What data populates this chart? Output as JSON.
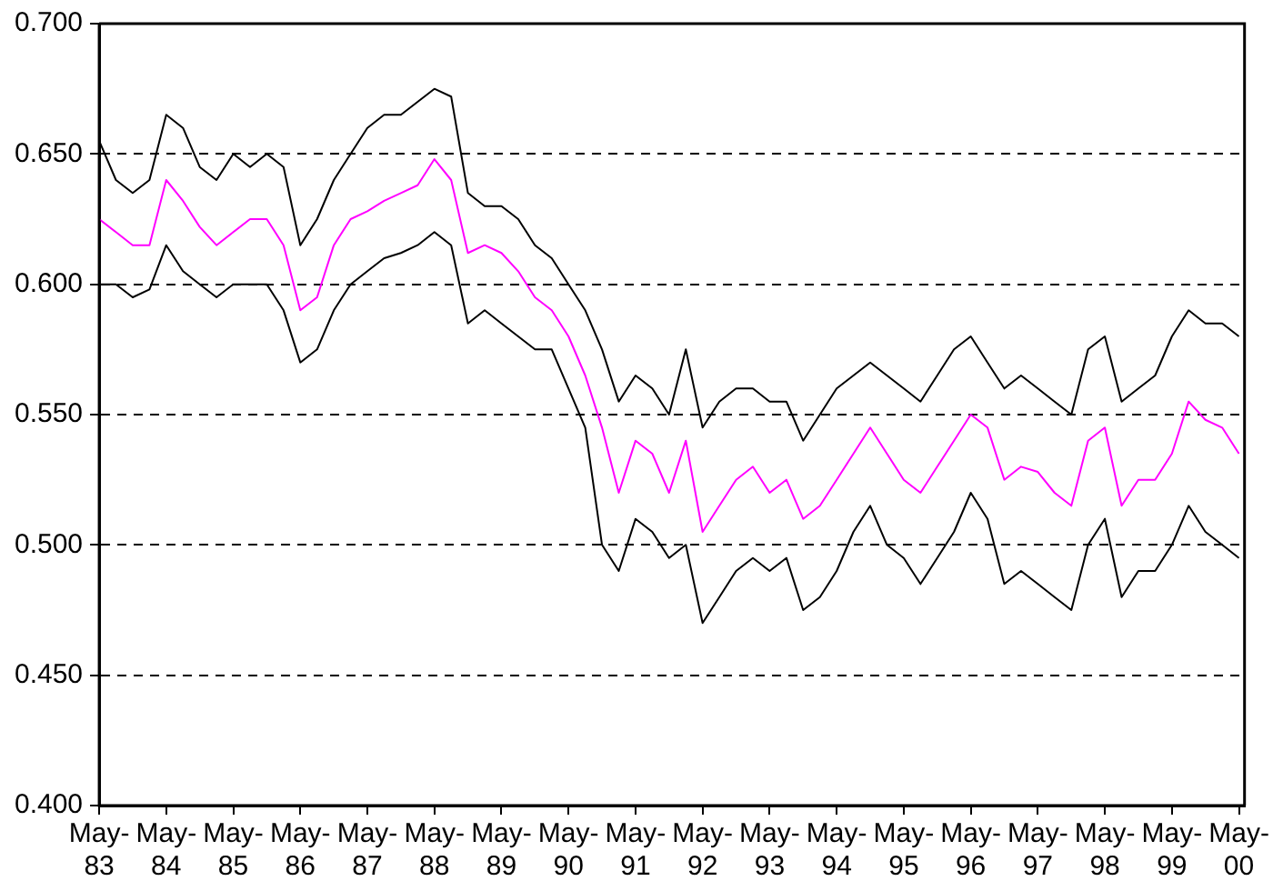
{
  "chart_data": {
    "type": "line",
    "x": [
      "1983-05",
      "1983-08",
      "1983-11",
      "1984-02",
      "1984-05",
      "1984-08",
      "1984-11",
      "1985-02",
      "1985-05",
      "1985-08",
      "1985-11",
      "1986-02",
      "1986-05",
      "1986-08",
      "1986-11",
      "1987-02",
      "1987-05",
      "1987-08",
      "1987-11",
      "1988-02",
      "1988-05",
      "1988-08",
      "1988-11",
      "1989-02",
      "1989-05",
      "1989-08",
      "1989-11",
      "1990-02",
      "1990-05",
      "1990-08",
      "1990-11",
      "1991-02",
      "1991-05",
      "1991-08",
      "1991-11",
      "1992-02",
      "1992-05",
      "1992-08",
      "1992-11",
      "1993-02",
      "1993-05",
      "1993-08",
      "1993-11",
      "1994-02",
      "1994-05",
      "1994-08",
      "1994-11",
      "1995-02",
      "1995-05",
      "1995-08",
      "1995-11",
      "1996-02",
      "1996-05",
      "1996-08",
      "1996-11",
      "1997-02",
      "1997-05",
      "1997-08",
      "1997-11",
      "1998-02",
      "1998-05",
      "1998-08",
      "1998-11",
      "1999-02",
      "1999-05",
      "1999-08",
      "1999-11",
      "2000-02",
      "2000-05"
    ],
    "series": [
      {
        "color": "#000000",
        "values": [
          0.655,
          0.64,
          0.635,
          0.64,
          0.665,
          0.66,
          0.645,
          0.64,
          0.65,
          0.645,
          0.65,
          0.645,
          0.615,
          0.625,
          0.64,
          0.65,
          0.66,
          0.665,
          0.665,
          0.67,
          0.675,
          0.672,
          0.635,
          0.63,
          0.63,
          0.625,
          0.615,
          0.61,
          0.6,
          0.59,
          0.575,
          0.555,
          0.565,
          0.56,
          0.55,
          0.575,
          0.545,
          0.555,
          0.56,
          0.56,
          0.555,
          0.555,
          0.54,
          0.55,
          0.56,
          0.565,
          0.57,
          0.565,
          0.56,
          0.555,
          0.565,
          0.575,
          0.58,
          0.57,
          0.56,
          0.565,
          0.56,
          0.555,
          0.55,
          0.575,
          0.58,
          0.555,
          0.56,
          0.565,
          0.58,
          0.59,
          0.585,
          0.585,
          0.58
        ]
      },
      {
        "color": "#ff00ff",
        "values": [
          0.625,
          0.62,
          0.615,
          0.615,
          0.64,
          0.632,
          0.622,
          0.615,
          0.62,
          0.625,
          0.625,
          0.615,
          0.59,
          0.595,
          0.615,
          0.625,
          0.628,
          0.632,
          0.635,
          0.638,
          0.648,
          0.64,
          0.612,
          0.615,
          0.612,
          0.605,
          0.595,
          0.59,
          0.58,
          0.565,
          0.545,
          0.52,
          0.54,
          0.535,
          0.52,
          0.54,
          0.505,
          0.515,
          0.525,
          0.53,
          0.52,
          0.525,
          0.51,
          0.515,
          0.525,
          0.535,
          0.545,
          0.535,
          0.525,
          0.52,
          0.53,
          0.54,
          0.55,
          0.545,
          0.525,
          0.53,
          0.528,
          0.52,
          0.515,
          0.54,
          0.545,
          0.515,
          0.525,
          0.525,
          0.535,
          0.555,
          0.548,
          0.545,
          0.535
        ]
      },
      {
        "color": "#000000",
        "values": [
          0.6,
          0.6,
          0.595,
          0.598,
          0.615,
          0.605,
          0.6,
          0.595,
          0.6,
          0.6,
          0.6,
          0.59,
          0.57,
          0.575,
          0.59,
          0.6,
          0.605,
          0.61,
          0.612,
          0.615,
          0.62,
          0.615,
          0.585,
          0.59,
          0.585,
          0.58,
          0.575,
          0.575,
          0.56,
          0.545,
          0.5,
          0.49,
          0.51,
          0.505,
          0.495,
          0.5,
          0.47,
          0.48,
          0.49,
          0.495,
          0.49,
          0.495,
          0.475,
          0.48,
          0.49,
          0.505,
          0.515,
          0.5,
          0.495,
          0.485,
          0.495,
          0.505,
          0.52,
          0.51,
          0.485,
          0.49,
          0.485,
          0.48,
          0.475,
          0.5,
          0.51,
          0.48,
          0.49,
          0.49,
          0.5,
          0.515,
          0.505,
          0.5,
          0.495
        ]
      }
    ],
    "xlim": [
      "1983-05",
      "2000-06"
    ],
    "xticks": [
      {
        "value": "1983-05",
        "label": "May-83"
      },
      {
        "value": "1984-05",
        "label": "May-84"
      },
      {
        "value": "1985-05",
        "label": "May-85"
      },
      {
        "value": "1986-05",
        "label": "May-86"
      },
      {
        "value": "1987-05",
        "label": "May-87"
      },
      {
        "value": "1988-05",
        "label": "May-88"
      },
      {
        "value": "1989-05",
        "label": "May-89"
      },
      {
        "value": "1990-05",
        "label": "May-90"
      },
      {
        "value": "1991-05",
        "label": "May-91"
      },
      {
        "value": "1992-05",
        "label": "May-92"
      },
      {
        "value": "1993-05",
        "label": "May-93"
      },
      {
        "value": "1994-05",
        "label": "May-94"
      },
      {
        "value": "1995-05",
        "label": "May-95"
      },
      {
        "value": "1996-05",
        "label": "May-96"
      },
      {
        "value": "1997-05",
        "label": "May-97"
      },
      {
        "value": "1998-05",
        "label": "May-98"
      },
      {
        "value": "1999-05",
        "label": "May-99"
      },
      {
        "value": "2000-05",
        "label": "May-00"
      }
    ],
    "ylim": [
      0.4,
      0.7
    ],
    "yticks": [
      {
        "value": 0.4,
        "label": "0.400"
      },
      {
        "value": 0.45,
        "label": "0.450"
      },
      {
        "value": 0.5,
        "label": "0.500"
      },
      {
        "value": 0.55,
        "label": "0.550"
      },
      {
        "value": 0.6,
        "label": "0.600"
      },
      {
        "value": 0.65,
        "label": "0.650"
      },
      {
        "value": 0.7,
        "label": "0.700"
      }
    ],
    "grid": "y",
    "legend": false,
    "marker": "none",
    "line_style": "solid"
  }
}
